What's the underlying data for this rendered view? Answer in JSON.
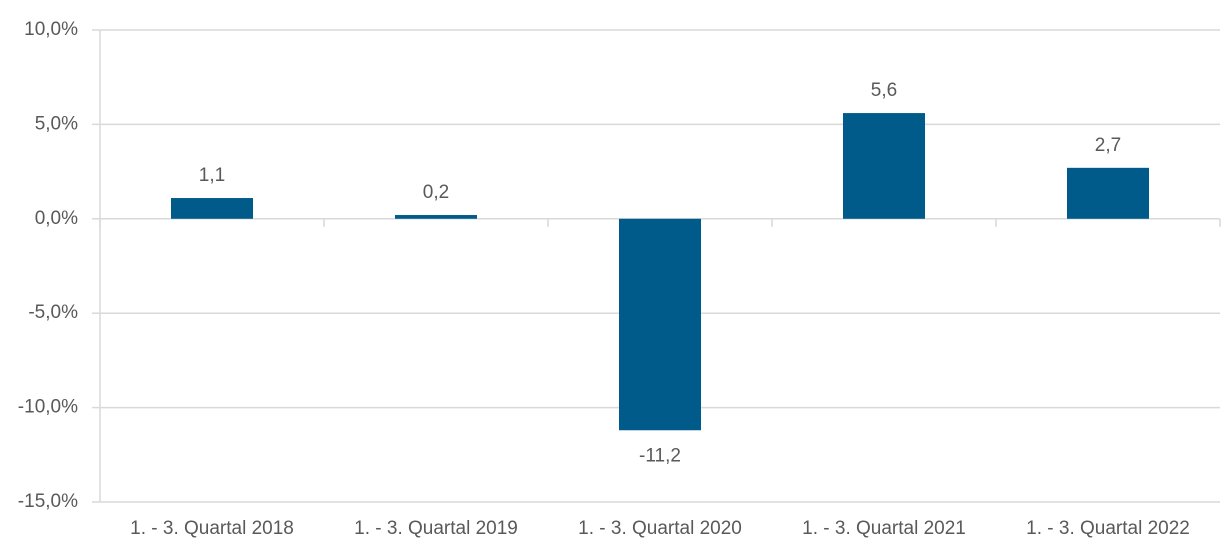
{
  "chart_data": {
    "type": "bar",
    "categories": [
      "1. - 3. Quartal 2018",
      "1. - 3. Quartal 2019",
      "1. - 3. Quartal 2020",
      "1. - 3. Quartal 2021",
      "1. - 3. Quartal 2022"
    ],
    "values": [
      1.1,
      0.2,
      -11.2,
      5.6,
      2.7
    ],
    "value_labels": [
      "1,1",
      "0,2",
      "-11,2",
      "5,6",
      "2,7"
    ],
    "color": "#005b8a",
    "ylim": [
      -15,
      10
    ],
    "yticks": [
      {
        "value": -15,
        "label": "-15,0%"
      },
      {
        "value": -10,
        "label": "-10,0%"
      },
      {
        "value": -5,
        "label": "-5,0%"
      },
      {
        "value": 0,
        "label": "0,0%"
      },
      {
        "value": 5,
        "label": "5,0%"
      },
      {
        "value": 10,
        "label": "10,0%"
      }
    ],
    "grid": true
  }
}
